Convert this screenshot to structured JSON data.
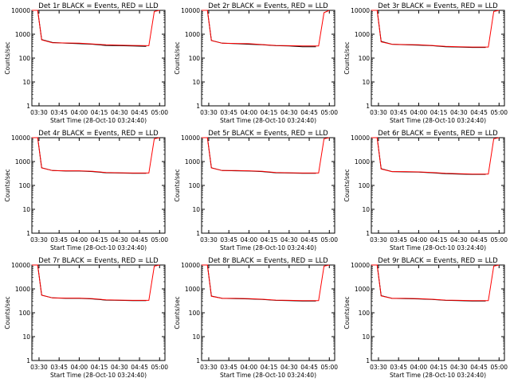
{
  "chart_data": [
    {
      "type": "line",
      "title": "Det 1r BLACK = Events, RED = LLD",
      "xlabel": "Start Time (28-Oct-10 03:24:40)",
      "ylabel": "Counts/sec",
      "y_scale": "log",
      "ylim": [
        1,
        10000
      ],
      "y_ticks": [
        1,
        10,
        100,
        1000,
        10000
      ],
      "y_tick_labels": [
        "1",
        "10",
        "100",
        "1000",
        "10000"
      ],
      "x_ticks": [
        "03:30",
        "03:45",
        "04:00",
        "04:15",
        "04:30",
        "04:45",
        "05:00"
      ],
      "series": [
        {
          "name": "Events",
          "color": "#000000",
          "x": [
            "03:24:40",
            "03:29:00",
            "03:32:00",
            "03:40:00",
            "03:50:00",
            "04:00:00",
            "04:10:00",
            "04:20:00",
            "04:30:00",
            "04:40:00",
            "04:50:00"
          ],
          "values": [
            12000,
            10000,
            600,
            450,
            420,
            400,
            380,
            340,
            330,
            320,
            310
          ]
        },
        {
          "name": "LLD",
          "color": "#ff0000",
          "x": [
            "03:24:40",
            "03:29:00",
            "03:32:00",
            "03:40:00",
            "03:50:00",
            "04:00:00",
            "04:10:00",
            "04:20:00",
            "04:30:00",
            "04:40:00",
            "04:52:00",
            "04:56:00",
            "05:00:00"
          ],
          "values": [
            12000,
            10000,
            580,
            440,
            430,
            420,
            390,
            360,
            350,
            340,
            330,
            9000,
            10000
          ]
        }
      ]
    },
    {
      "type": "line",
      "title": "Det 2r BLACK = Events, RED = LLD",
      "xlabel": "Start Time (28-Oct-10 03:24:40)",
      "ylabel": "Counts/sec",
      "y_scale": "log",
      "ylim": [
        1,
        10000
      ],
      "y_ticks": [
        1,
        10,
        100,
        1000,
        10000
      ],
      "y_tick_labels": [
        "1",
        "10",
        "100",
        "1000",
        "10000"
      ],
      "x_ticks": [
        "03:30",
        "03:45",
        "04:00",
        "04:15",
        "04:30",
        "04:45",
        "05:00"
      ],
      "series": [
        {
          "name": "Events",
          "color": "#000000",
          "x": [
            "03:24:40",
            "03:29:00",
            "03:32:00",
            "03:40:00",
            "03:50:00",
            "04:00:00",
            "04:10:00",
            "04:20:00",
            "04:30:00",
            "04:40:00",
            "04:50:00"
          ],
          "values": [
            12000,
            10000,
            550,
            420,
            400,
            380,
            360,
            330,
            320,
            300,
            300
          ]
        },
        {
          "name": "LLD",
          "color": "#ff0000",
          "x": [
            "03:24:40",
            "03:29:00",
            "03:32:00",
            "03:40:00",
            "03:50:00",
            "04:00:00",
            "04:10:00",
            "04:20:00",
            "04:30:00",
            "04:40:00",
            "04:52:00",
            "04:56:00",
            "05:00:00"
          ],
          "values": [
            12000,
            10000,
            540,
            420,
            410,
            400,
            370,
            340,
            330,
            320,
            320,
            8000,
            10000
          ]
        }
      ]
    },
    {
      "type": "line",
      "title": "Det 3r BLACK = Events, RED = LLD",
      "xlabel": "Start Time (28-Oct-10 03:24:40)",
      "ylabel": "Counts/sec",
      "y_scale": "log",
      "ylim": [
        1,
        10000
      ],
      "y_ticks": [
        1,
        10,
        100,
        1000,
        10000
      ],
      "y_tick_labels": [
        "1",
        "10",
        "100",
        "1000",
        "10000"
      ],
      "x_ticks": [
        "03:30",
        "03:45",
        "04:00",
        "04:15",
        "04:30",
        "04:45",
        "05:00"
      ],
      "series": [
        {
          "name": "Events",
          "color": "#000000",
          "x": [
            "03:24:40",
            "03:29:00",
            "03:32:00",
            "03:40:00",
            "03:50:00",
            "04:00:00",
            "04:10:00",
            "04:20:00",
            "04:30:00",
            "04:40:00",
            "04:50:00"
          ],
          "values": [
            12000,
            10000,
            500,
            380,
            360,
            350,
            330,
            300,
            290,
            280,
            280
          ]
        },
        {
          "name": "LLD",
          "color": "#ff0000",
          "x": [
            "03:24:40",
            "03:29:00",
            "03:32:00",
            "03:40:00",
            "03:50:00",
            "04:00:00",
            "04:10:00",
            "04:20:00",
            "04:30:00",
            "04:40:00",
            "04:52:00",
            "04:56:00",
            "05:00:00"
          ],
          "values": [
            12000,
            10000,
            480,
            380,
            370,
            360,
            340,
            310,
            300,
            290,
            290,
            9000,
            10000
          ]
        }
      ]
    },
    {
      "type": "line",
      "title": "Det 4r BLACK = Events, RED = LLD",
      "xlabel": "Start Time (28-Oct-10 03:24:40)",
      "ylabel": "Counts/sec",
      "y_scale": "log",
      "ylim": [
        1,
        10000
      ],
      "y_ticks": [
        1,
        10,
        100,
        1000,
        10000
      ],
      "y_tick_labels": [
        "1",
        "10",
        "100",
        "1000",
        "10000"
      ],
      "x_ticks": [
        "03:30",
        "03:45",
        "04:00",
        "04:15",
        "04:30",
        "04:45",
        "05:00"
      ],
      "series": [
        {
          "name": "Events",
          "color": "#000000",
          "x": [
            "03:24:40",
            "03:29:00",
            "03:32:00",
            "03:40:00",
            "03:50:00",
            "04:00:00",
            "04:10:00",
            "04:20:00",
            "04:30:00",
            "04:40:00",
            "04:50:00"
          ],
          "values": [
            12000,
            10000,
            550,
            420,
            400,
            400,
            380,
            340,
            330,
            320,
            320
          ]
        },
        {
          "name": "LLD",
          "color": "#ff0000",
          "x": [
            "03:24:40",
            "03:29:00",
            "03:32:00",
            "03:40:00",
            "03:50:00",
            "04:00:00",
            "04:10:00",
            "04:20:00",
            "04:30:00",
            "04:40:00",
            "04:52:00",
            "04:56:00",
            "05:00:00"
          ],
          "values": [
            12000,
            10000,
            540,
            420,
            410,
            410,
            390,
            350,
            340,
            330,
            330,
            9000,
            10000
          ]
        }
      ]
    },
    {
      "type": "line",
      "title": "Det 5r BLACK = Events, RED = LLD",
      "xlabel": "Start Time (28-Oct-10 03:24:40)",
      "ylabel": "Counts/sec",
      "y_scale": "log",
      "ylim": [
        1,
        10000
      ],
      "y_ticks": [
        1,
        10,
        100,
        1000,
        10000
      ],
      "y_tick_labels": [
        "1",
        "10",
        "100",
        "1000",
        "10000"
      ],
      "x_ticks": [
        "03:30",
        "03:45",
        "04:00",
        "04:15",
        "04:30",
        "04:45",
        "05:00"
      ],
      "series": [
        {
          "name": "Events",
          "color": "#000000",
          "x": [
            "03:24:40",
            "03:29:00",
            "03:32:00",
            "03:40:00",
            "03:50:00",
            "04:00:00",
            "04:10:00",
            "04:20:00",
            "04:30:00",
            "04:40:00",
            "04:50:00"
          ],
          "values": [
            12000,
            10000,
            550,
            420,
            410,
            400,
            380,
            340,
            330,
            320,
            320
          ]
        },
        {
          "name": "LLD",
          "color": "#ff0000",
          "x": [
            "03:24:40",
            "03:29:00",
            "03:32:00",
            "03:40:00",
            "03:50:00",
            "04:00:00",
            "04:10:00",
            "04:20:00",
            "04:30:00",
            "04:40:00",
            "04:52:00",
            "04:56:00",
            "05:00:00"
          ],
          "values": [
            12000,
            10000,
            540,
            420,
            420,
            410,
            390,
            350,
            340,
            330,
            330,
            9000,
            10000
          ]
        }
      ]
    },
    {
      "type": "line",
      "title": "Det 6r BLACK = Events, RED = LLD",
      "xlabel": "Start Time (28-Oct-10 03:24:40)",
      "ylabel": "Counts/sec",
      "y_scale": "log",
      "ylim": [
        1,
        10000
      ],
      "y_ticks": [
        1,
        10,
        100,
        1000,
        10000
      ],
      "y_tick_labels": [
        "1",
        "10",
        "100",
        "1000",
        "10000"
      ],
      "x_ticks": [
        "03:30",
        "03:45",
        "04:00",
        "04:15",
        "04:30",
        "04:45",
        "05:00"
      ],
      "series": [
        {
          "name": "Events",
          "color": "#000000",
          "x": [
            "03:24:40",
            "03:29:00",
            "03:32:00",
            "03:40:00",
            "03:50:00",
            "04:00:00",
            "04:10:00",
            "04:20:00",
            "04:30:00",
            "04:40:00",
            "04:50:00"
          ],
          "values": [
            12000,
            10000,
            500,
            380,
            370,
            360,
            340,
            310,
            300,
            290,
            290
          ]
        },
        {
          "name": "LLD",
          "color": "#ff0000",
          "x": [
            "03:24:40",
            "03:29:00",
            "03:32:00",
            "03:40:00",
            "03:50:00",
            "04:00:00",
            "04:10:00",
            "04:20:00",
            "04:30:00",
            "04:40:00",
            "04:52:00",
            "04:56:00",
            "05:00:00"
          ],
          "values": [
            12000,
            10000,
            490,
            380,
            380,
            370,
            350,
            320,
            310,
            300,
            300,
            9000,
            10000
          ]
        }
      ]
    },
    {
      "type": "line",
      "title": "Det 7r BLACK = Events, RED = LLD",
      "xlabel": "Start Time (28-Oct-10 03:24:40)",
      "ylabel": "Counts/sec",
      "y_scale": "log",
      "ylim": [
        1,
        10000
      ],
      "y_ticks": [
        1,
        10,
        100,
        1000,
        10000
      ],
      "y_tick_labels": [
        "1",
        "10",
        "100",
        "1000",
        "10000"
      ],
      "x_ticks": [
        "03:30",
        "03:45",
        "04:00",
        "04:15",
        "04:30",
        "04:45",
        "05:00"
      ],
      "series": [
        {
          "name": "Events",
          "color": "#000000",
          "x": [
            "03:24:40",
            "03:29:00",
            "03:32:00",
            "03:40:00",
            "03:50:00",
            "04:00:00",
            "04:10:00",
            "04:20:00",
            "04:30:00",
            "04:40:00",
            "04:50:00"
          ],
          "values": [
            12000,
            10000,
            550,
            420,
            400,
            400,
            380,
            340,
            330,
            320,
            320
          ]
        },
        {
          "name": "LLD",
          "color": "#ff0000",
          "x": [
            "03:24:40",
            "03:29:00",
            "03:32:00",
            "03:40:00",
            "03:50:00",
            "04:00:00",
            "04:10:00",
            "04:20:00",
            "04:30:00",
            "04:40:00",
            "04:52:00",
            "04:56:00",
            "05:00:00"
          ],
          "values": [
            12000,
            10000,
            540,
            420,
            410,
            410,
            390,
            350,
            340,
            330,
            330,
            9000,
            10000
          ]
        }
      ]
    },
    {
      "type": "line",
      "title": "Det 8r BLACK = Events, RED = LLD",
      "xlabel": "Start Time (28-Oct-10 03:24:40)",
      "ylabel": "Counts/sec",
      "y_scale": "log",
      "ylim": [
        1,
        10000
      ],
      "y_ticks": [
        1,
        10,
        100,
        1000,
        10000
      ],
      "y_tick_labels": [
        "1",
        "10",
        "100",
        "1000",
        "10000"
      ],
      "x_ticks": [
        "03:30",
        "03:45",
        "04:00",
        "04:15",
        "04:30",
        "04:45",
        "05:00"
      ],
      "series": [
        {
          "name": "Events",
          "color": "#000000",
          "x": [
            "03:24:40",
            "03:29:00",
            "03:32:00",
            "03:40:00",
            "03:50:00",
            "04:00:00",
            "04:10:00",
            "04:20:00",
            "04:30:00",
            "04:40:00",
            "04:50:00"
          ],
          "values": [
            12000,
            10000,
            500,
            400,
            390,
            380,
            360,
            330,
            320,
            310,
            310
          ]
        },
        {
          "name": "LLD",
          "color": "#ff0000",
          "x": [
            "03:24:40",
            "03:29:00",
            "03:32:00",
            "03:40:00",
            "03:50:00",
            "04:00:00",
            "04:10:00",
            "04:20:00",
            "04:30:00",
            "04:40:00",
            "04:52:00",
            "04:56:00",
            "05:00:00"
          ],
          "values": [
            12000,
            10000,
            490,
            400,
            400,
            390,
            370,
            340,
            330,
            320,
            320,
            9000,
            10000
          ]
        }
      ]
    },
    {
      "type": "line",
      "title": "Det 9r BLACK = Events, RED = LLD",
      "xlabel": "Start Time (28-Oct-10 03:24:40)",
      "ylabel": "Counts/sec",
      "y_scale": "log",
      "ylim": [
        1,
        10000
      ],
      "y_ticks": [
        1,
        10,
        100,
        1000,
        10000
      ],
      "y_tick_labels": [
        "1",
        "10",
        "100",
        "1000",
        "10000"
      ],
      "x_ticks": [
        "03:30",
        "03:45",
        "04:00",
        "04:15",
        "04:30",
        "04:45",
        "05:00"
      ],
      "series": [
        {
          "name": "Events",
          "color": "#000000",
          "x": [
            "03:24:40",
            "03:29:00",
            "03:32:00",
            "03:40:00",
            "03:50:00",
            "04:00:00",
            "04:10:00",
            "04:20:00",
            "04:30:00",
            "04:40:00",
            "04:50:00"
          ],
          "values": [
            12000,
            10000,
            520,
            400,
            390,
            380,
            360,
            330,
            320,
            310,
            310
          ]
        },
        {
          "name": "LLD",
          "color": "#ff0000",
          "x": [
            "03:24:40",
            "03:29:00",
            "03:32:00",
            "03:40:00",
            "03:50:00",
            "04:00:00",
            "04:10:00",
            "04:20:00",
            "04:30:00",
            "04:40:00",
            "04:52:00",
            "04:56:00",
            "05:00:00"
          ],
          "values": [
            12000,
            10000,
            510,
            400,
            400,
            390,
            370,
            340,
            330,
            320,
            320,
            9000,
            10000
          ]
        }
      ]
    }
  ]
}
